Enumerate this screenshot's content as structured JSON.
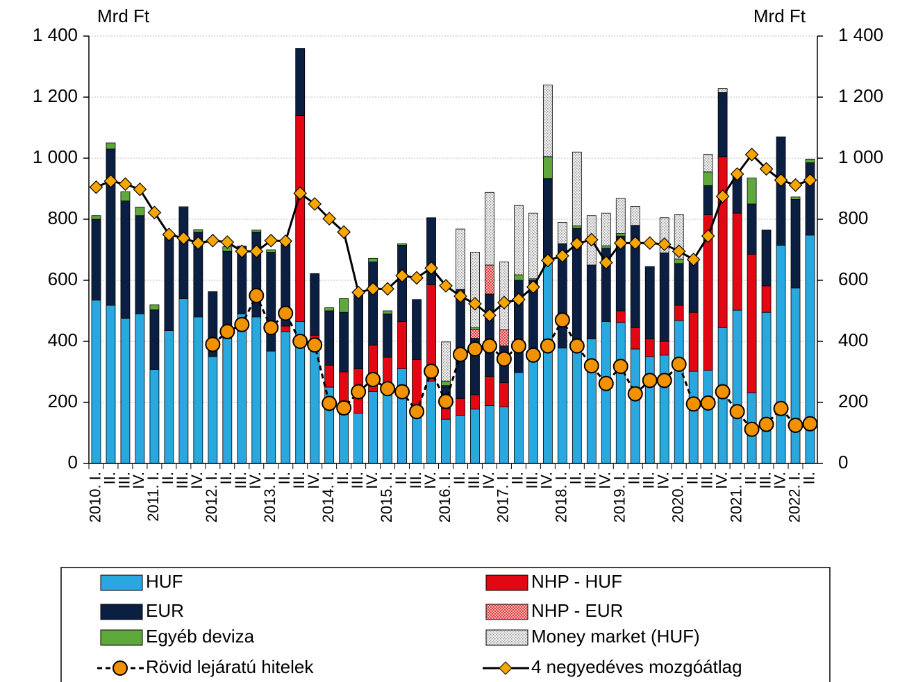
{
  "chart_data": {
    "type": "bar",
    "y_label": "Mrd Ft",
    "y2_label": "Mrd Ft",
    "categories": [
      "2010. I.",
      "II.",
      "III.",
      "IV.",
      "2011. I.",
      "II.",
      "III.",
      "IV.",
      "2012. I.",
      "II.",
      "III.",
      "IV.",
      "2013. I.",
      "II.",
      "III.",
      "IV.",
      "2014. I.",
      "II.",
      "III.",
      "IV.",
      "2015. I.",
      "II.",
      "III.",
      "IV.",
      "2016. I.",
      "II.",
      "III.",
      "IV.",
      "2017. I.",
      "II.",
      "III.",
      "IV.",
      "2018. I.",
      "II.",
      "III.",
      "IV.",
      "2019. I.",
      "II.",
      "III.",
      "IV.",
      "2020. I.",
      "II.",
      "III.",
      "IV.",
      "2021. I.",
      "II.",
      "III.",
      "IV.",
      "2022. I.",
      "II."
    ],
    "ylim": [
      0,
      1400
    ],
    "yticks": [
      0,
      200,
      400,
      600,
      800,
      {
        "value": 1000,
        "label": "1 000"
      },
      {
        "value": 1200,
        "label": "1 200"
      },
      {
        "value": 1400,
        "label": "1 400"
      }
    ],
    "y2lim": [
      0,
      1400
    ],
    "y2ticks": [
      0,
      200,
      400,
      600,
      800,
      {
        "value": 1000,
        "label": "1 000"
      },
      {
        "value": 1200,
        "label": "1 200"
      },
      {
        "value": 1400,
        "label": "1 400"
      }
    ],
    "grid": true,
    "stacked": true,
    "series": [
      {
        "name": "HUF",
        "type": "bar",
        "color": "#29a8e0",
        "values": [
          535,
          518,
          475,
          490,
          308,
          435,
          540,
          480,
          350,
          410,
          490,
          480,
          368,
          432,
          465,
          410,
          250,
          160,
          165,
          235,
          255,
          310,
          160,
          270,
          145,
          158,
          178,
          190,
          185,
          298,
          340,
          655,
          378,
          385,
          408,
          465,
          462,
          375,
          350,
          355,
          468,
          302,
          305,
          445,
          502,
          232,
          495,
          715,
          575,
          748
        ]
      },
      {
        "name": "NHP - HUF",
        "type": "bar",
        "color": "#e30613",
        "values": [
          0,
          0,
          0,
          0,
          0,
          0,
          0,
          0,
          0,
          0,
          0,
          0,
          0,
          18,
          675,
          10,
          72,
          140,
          145,
          153,
          93,
          155,
          180,
          315,
          35,
          55,
          47,
          95,
          80,
          0,
          0,
          0,
          0,
          0,
          0,
          0,
          38,
          70,
          58,
          45,
          50,
          193,
          510,
          560,
          318,
          453,
          87,
          0,
          0,
          0
        ]
      },
      {
        "name": "EUR",
        "type": "bar",
        "color": "#0b1f42",
        "values": [
          265,
          512,
          385,
          322,
          195,
          310,
          298,
          278,
          213,
          285,
          222,
          278,
          324,
          270,
          220,
          202,
          178,
          195,
          250,
          272,
          142,
          250,
          197,
          220,
          75,
          357,
          185,
          270,
          120,
          302,
          260,
          278,
          342,
          385,
          242,
          240,
          245,
          335,
          237,
          290,
          137,
          165,
          95,
          210,
          120,
          165,
          183,
          355,
          290,
          237
        ]
      },
      {
        "name": "NHP - EUR",
        "type": "bar",
        "color": "#f08080",
        "pattern": "checker",
        "values": [
          0,
          0,
          0,
          0,
          0,
          0,
          0,
          0,
          0,
          0,
          0,
          0,
          0,
          0,
          0,
          0,
          0,
          0,
          0,
          0,
          0,
          0,
          0,
          0,
          0,
          0,
          30,
          95,
          53,
          0,
          0,
          0,
          0,
          0,
          0,
          0,
          0,
          0,
          0,
          0,
          0,
          0,
          0,
          0,
          0,
          0,
          0,
          0,
          0,
          0
        ]
      },
      {
        "name": "Egyéb deviza",
        "type": "bar",
        "color": "#5fa83c",
        "values": [
          12,
          20,
          30,
          28,
          17,
          0,
          3,
          8,
          0,
          15,
          0,
          7,
          8,
          0,
          0,
          0,
          10,
          45,
          0,
          12,
          10,
          5,
          0,
          0,
          15,
          0,
          5,
          0,
          0,
          18,
          5,
          72,
          0,
          8,
          0,
          8,
          8,
          0,
          0,
          0,
          15,
          0,
          45,
          0,
          0,
          85,
          0,
          0,
          8,
          12
        ]
      },
      {
        "name": "Money market (HUF)",
        "type": "bar",
        "color": "#c8c8c8",
        "pattern": "dotted",
        "values": [
          0,
          0,
          0,
          0,
          0,
          0,
          0,
          0,
          0,
          0,
          0,
          0,
          0,
          0,
          0,
          0,
          0,
          0,
          0,
          0,
          0,
          0,
          0,
          0,
          128,
          198,
          247,
          238,
          222,
          227,
          215,
          235,
          70,
          242,
          162,
          107,
          115,
          62,
          0,
          115,
          145,
          0,
          57,
          13,
          0,
          0,
          0,
          0,
          0,
          0
        ]
      },
      {
        "name": "Rövid lejáratú hitelek",
        "type": "line",
        "color": "#000000",
        "line_style": "dashed",
        "marker": "circle",
        "marker_color": "#f39200",
        "values": [
          null,
          null,
          null,
          null,
          null,
          null,
          null,
          null,
          390,
          432,
          455,
          550,
          445,
          492,
          400,
          388,
          197,
          182,
          235,
          275,
          245,
          235,
          170,
          302,
          203,
          357,
          375,
          385,
          342,
          385,
          355,
          385,
          470,
          385,
          320,
          262,
          318,
          228,
          272,
          272,
          325,
          195,
          198,
          235,
          170,
          112,
          128,
          180,
          125,
          130
        ]
      },
      {
        "name": "4 negyedéves mozgóátlag",
        "type": "line",
        "axis": "y2",
        "color": "#000000",
        "line_style": "solid",
        "marker": "diamond",
        "marker_color": "#f7a600",
        "values": [
          905,
          925,
          915,
          898,
          822,
          750,
          738,
          722,
          730,
          725,
          695,
          695,
          730,
          728,
          885,
          850,
          802,
          758,
          560,
          572,
          572,
          615,
          608,
          640,
          582,
          548,
          523,
          485,
          527,
          537,
          578,
          665,
          680,
          720,
          733,
          658,
          722,
          722,
          722,
          718,
          695,
          668,
          745,
          875,
          948,
          1012,
          965,
          928,
          912,
          928
        ]
      }
    ]
  }
}
